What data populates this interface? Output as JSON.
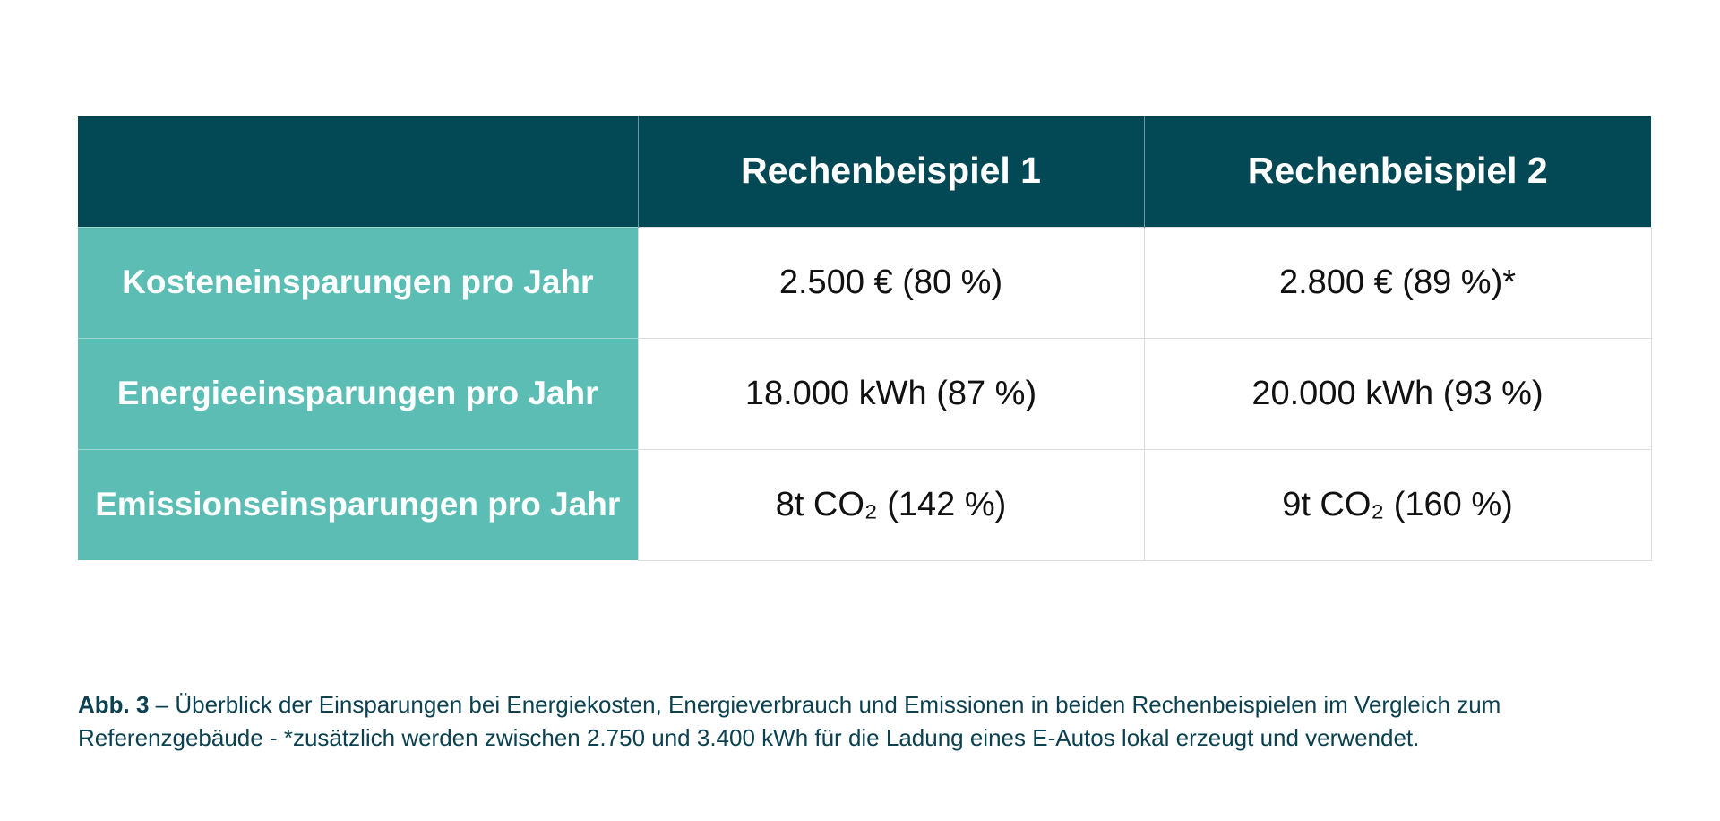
{
  "table": {
    "columns": [
      "",
      "Rechenbeispiel 1",
      "Rechenbeispiel 2"
    ],
    "rows": [
      {
        "label": "Kosteneinsparungen pro Jahr",
        "values": [
          "2.500 € (80 %)",
          "2.800 € (89 %)*"
        ]
      },
      {
        "label": "Energieeinsparungen pro Jahr",
        "values": [
          "18.000 kWh (87 %)",
          "20.000 kWh (93 %)"
        ]
      },
      {
        "label": "Emissionseinsparungen pro Jahr",
        "values": [
          "8t CO₂ (142 %)",
          "9t CO₂ (160 %)"
        ]
      }
    ]
  },
  "caption": {
    "label": "Abb. 3",
    "text": " – Überblick der Einsparungen bei Energiekosten, Energieverbrauch und Emissionen in beiden Rechenbeispielen im Vergleich zum Referenzgebäude - *zusätzlich werden zwischen 2.750 und 3.400 kWh für die Ladung eines E-Autos lokal erzeugt und verwendet."
  },
  "colors": {
    "header_bg": "#034855",
    "row_label_bg": "#5bbdb3",
    "caption_text": "#0b4150"
  }
}
